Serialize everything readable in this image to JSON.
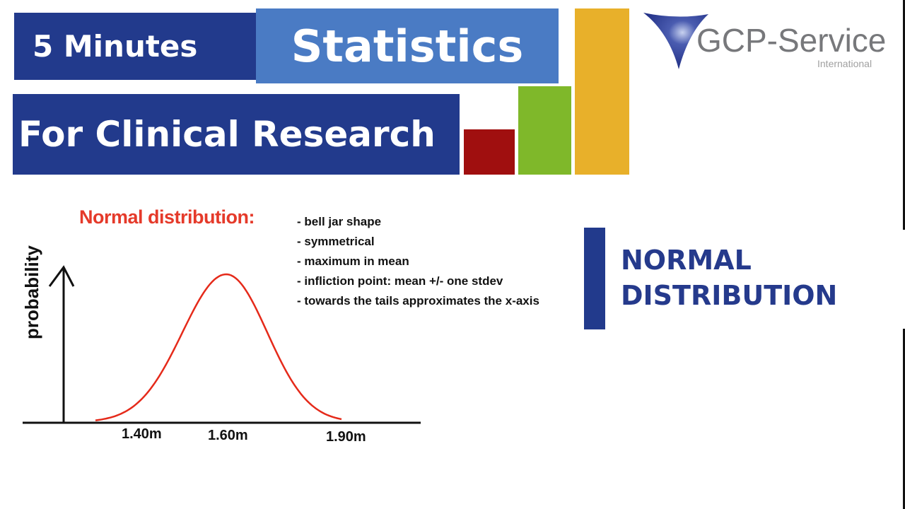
{
  "header": {
    "title_part1": "5 Minutes",
    "title_part2": "Statistics",
    "subtitle": "For Clinical Research",
    "colors": {
      "navy": "#223a8c",
      "light_blue": "#4a7bc4",
      "red": "#a00f0f",
      "green": "#7fb82a",
      "yellow": "#e8b02a"
    }
  },
  "logo": {
    "name": "GCP-Service",
    "sub": "International"
  },
  "figure": {
    "heading": "Normal distribution:",
    "bullets": [
      "- bell jar shape",
      "- symmetrical",
      "- maximum in mean",
      "- infliction point: mean +/- one stdev",
      "- towards the tails approximates the x-axis"
    ],
    "y_axis_label": "probability",
    "x_ticks": [
      "1.40m",
      "1.60m",
      "1.90m"
    ],
    "curve_color": "#e52a1a"
  },
  "section_title": {
    "line1": "NORMAL",
    "line2": "DISTRIBUTION"
  }
}
